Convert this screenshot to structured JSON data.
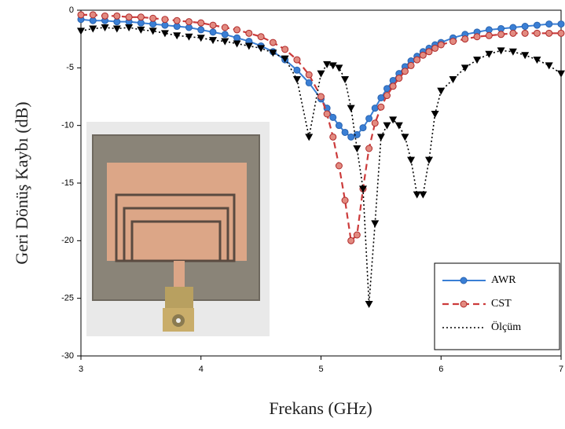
{
  "chart_data": {
    "type": "line",
    "xlabel": "Frekans (GHz)",
    "ylabel": "Geri Dönüş Kaybı (dB)",
    "x": [
      3.0,
      3.1,
      3.2,
      3.3,
      3.4,
      3.5,
      3.6,
      3.7,
      3.8,
      3.9,
      4.0,
      4.1,
      4.2,
      4.3,
      4.4,
      4.5,
      4.6,
      4.7,
      4.8,
      4.9,
      5.0,
      5.05,
      5.1,
      5.15,
      5.2,
      5.25,
      5.3,
      5.35,
      5.4,
      5.45,
      5.5,
      5.55,
      5.6,
      5.65,
      5.7,
      5.75,
      5.8,
      5.85,
      5.9,
      5.95,
      6.0,
      6.1,
      6.2,
      6.3,
      6.4,
      6.5,
      6.6,
      6.7,
      6.8,
      6.9,
      7.0
    ],
    "series": [
      {
        "name": "AWR",
        "color": "#3a7fd5",
        "values": [
          -0.8,
          -0.9,
          -0.9,
          -1.0,
          -1.0,
          -1.1,
          -1.2,
          -1.3,
          -1.4,
          -1.5,
          -1.7,
          -1.9,
          -2.1,
          -2.4,
          -2.7,
          -3.1,
          -3.6,
          -4.3,
          -5.2,
          -6.3,
          -7.7,
          -8.5,
          -9.3,
          -10.0,
          -10.6,
          -11.0,
          -10.8,
          -10.2,
          -9.4,
          -8.5,
          -7.6,
          -6.8,
          -6.1,
          -5.5,
          -4.9,
          -4.4,
          -4.0,
          -3.6,
          -3.3,
          -3.0,
          -2.8,
          -2.4,
          -2.1,
          -1.9,
          -1.7,
          -1.6,
          -1.5,
          -1.4,
          -1.3,
          -1.2,
          -1.2
        ]
      },
      {
        "name": "CST",
        "color": "#cc3b3b",
        "values": [
          -0.4,
          -0.4,
          -0.5,
          -0.5,
          -0.6,
          -0.6,
          -0.7,
          -0.8,
          -0.9,
          -1.0,
          -1.1,
          -1.3,
          -1.5,
          -1.7,
          -2.0,
          -2.3,
          -2.8,
          -3.4,
          -4.3,
          -5.6,
          -7.5,
          -9.0,
          -11.0,
          -13.5,
          -16.5,
          -20.0,
          -19.5,
          -15.5,
          -12.0,
          -9.8,
          -8.4,
          -7.4,
          -6.6,
          -5.9,
          -5.3,
          -4.8,
          -4.3,
          -3.9,
          -3.6,
          -3.3,
          -3.0,
          -2.7,
          -2.5,
          -2.3,
          -2.2,
          -2.1,
          -2.0,
          -2.0,
          -2.0,
          -2.0,
          -2.0
        ]
      },
      {
        "name": "Ölçüm",
        "color": "#000000",
        "values": [
          -1.8,
          -1.6,
          -1.5,
          -1.6,
          -1.5,
          -1.7,
          -1.8,
          -2.0,
          -2.2,
          -2.3,
          -2.4,
          -2.6,
          -2.7,
          -2.9,
          -3.1,
          -3.3,
          -3.7,
          -4.2,
          -6.0,
          -11.0,
          -5.5,
          -4.7,
          -4.8,
          -5.0,
          -6.0,
          -8.5,
          -12.0,
          -15.5,
          -25.5,
          -18.5,
          -11.0,
          -10.0,
          -9.5,
          -10.0,
          -11.0,
          -13.0,
          -16.0,
          -16.0,
          -13.0,
          -9.0,
          -7.0,
          -6.0,
          -5.0,
          -4.3,
          -3.8,
          -3.5,
          -3.6,
          -3.9,
          -4.3,
          -4.8,
          -5.5
        ]
      }
    ],
    "xlim": [
      3,
      7
    ],
    "ylim": [
      -30,
      0
    ],
    "xticks": [
      3,
      4,
      5,
      6,
      7
    ],
    "yticks": [
      0,
      -5,
      -10,
      -15,
      -20,
      -25,
      -30
    ],
    "legend": "lower right"
  }
}
